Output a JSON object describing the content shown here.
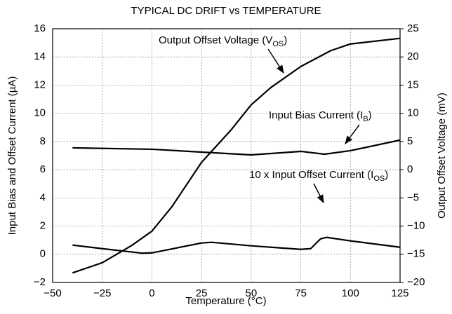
{
  "chart_data": {
    "type": "line",
    "title": "TYPICAL DC DRIFT vs TEMPERATURE",
    "xlabel": "Temperature (°C)",
    "ylabel": "Input Bias and Offset Current (µA)",
    "y2label": "Output Offset Voltage (mV)",
    "xlim": [
      -50,
      125
    ],
    "xticks": [
      {
        "value": -50,
        "label": "−50"
      },
      {
        "value": -25,
        "label": "−25"
      },
      0,
      25,
      50,
      75,
      100,
      125
    ],
    "ylim": [
      -2,
      16
    ],
    "yticks": [
      {
        "value": -2,
        "label": "−2"
      },
      0,
      2,
      4,
      6,
      8,
      10,
      12,
      14,
      16
    ],
    "y2lim": [
      -20,
      25
    ],
    "y2ticks": [
      {
        "value": -20,
        "label": "−20"
      },
      {
        "value": -15,
        "label": "−15"
      },
      {
        "value": -10,
        "label": "−10"
      },
      {
        "value": -5,
        "label": "−5"
      },
      0,
      5,
      10,
      15,
      20,
      25
    ],
    "grid": true,
    "series": [
      {
        "name": "Output Offset Voltage",
        "color": "#000000",
        "axis": "y2",
        "x": [
          -40,
          -25,
          -10,
          0,
          10,
          25,
          40,
          50,
          60,
          75,
          90,
          100,
          125
        ],
        "values": [
          -18.3,
          -16.5,
          -13.4,
          -10.9,
          -6.6,
          1.3,
          7.1,
          11.5,
          14.6,
          18.3,
          21.1,
          22.3,
          23.3
        ]
      },
      {
        "name": "Input Bias Current",
        "color": "#000000",
        "x": [
          -40,
          0,
          25,
          50,
          75,
          87,
          100,
          125
        ],
        "values": [
          7.55,
          7.45,
          7.25,
          7.05,
          7.3,
          7.1,
          7.35,
          8.1
        ]
      },
      {
        "name": "10 x Input Offset Current",
        "color": "#000000",
        "x": [
          -40,
          -25,
          -5,
          0,
          25,
          30,
          50,
          75,
          80,
          85,
          88,
          100,
          125
        ],
        "values": [
          0.65,
          0.4,
          0.08,
          0.1,
          0.8,
          0.85,
          0.6,
          0.35,
          0.4,
          1.1,
          1.2,
          0.95,
          0.5
        ]
      }
    ],
    "annotations": [
      {
        "text": "Output Offset Voltage (V",
        "sub": "OS",
        "end": ")"
      },
      {
        "text": "Input Bias Current (I",
        "sub": "B",
        "end": ")"
      },
      {
        "text": "10 x Input Offset Current (I",
        "sub": "OS",
        "end": ")"
      }
    ]
  }
}
